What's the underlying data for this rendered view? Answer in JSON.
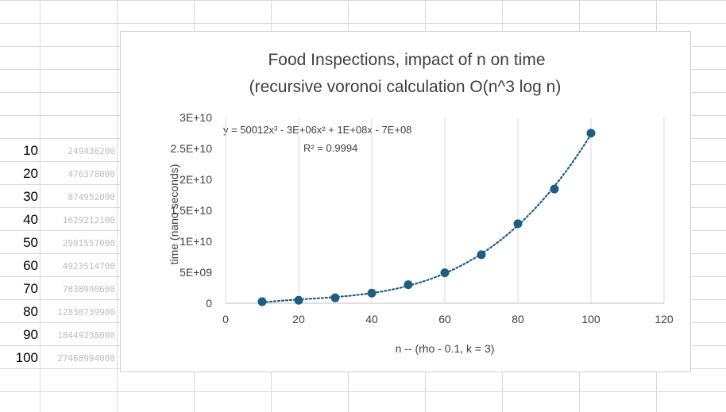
{
  "sheet": {
    "rows": [
      {
        "n": "10",
        "time": "249436200"
      },
      {
        "n": "20",
        "time": "476378000"
      },
      {
        "n": "30",
        "time": "874952000"
      },
      {
        "n": "40",
        "time": "1629212100"
      },
      {
        "n": "50",
        "time": "2991557000"
      },
      {
        "n": "60",
        "time": "4923514700"
      },
      {
        "n": "70",
        "time": "7838990600"
      },
      {
        "n": "80",
        "time": "12830739900"
      },
      {
        "n": "90",
        "time": "18449238000"
      },
      {
        "n": "100",
        "time": "27468994000"
      }
    ]
  },
  "chart_data": {
    "type": "scatter",
    "title": "Food Inspections, impact of n on time",
    "subtitle": "(recursive voronoi calculation O(n^3 log n)",
    "xlabel": "n --  (rho - 0.1, k = 3)",
    "ylabel": "time  (nano seconds)",
    "xlim": [
      0,
      120
    ],
    "ylim": [
      0,
      30000000000
    ],
    "x_ticks": [
      "0",
      "20",
      "40",
      "60",
      "80",
      "100",
      "120"
    ],
    "y_ticks": [
      "0",
      "5E+09",
      "1E+10",
      "1.5E+10",
      "2E+10",
      "2.5E+10",
      "3E+10"
    ],
    "grid": "vertical",
    "marker_color": "#1f5e80",
    "trendline_color": "#1f5e80",
    "trendline": {
      "type": "polynomial-3",
      "equation": "y = 50012x³ - 3E+06x² + 1E+08x - 7E+08",
      "r_squared": "R² = 0.9994"
    },
    "series": [
      {
        "x": [
          10,
          20,
          30,
          40,
          50,
          60,
          70,
          80,
          90,
          100
        ],
        "y": [
          249436200,
          476378000,
          874952000,
          1629212100,
          2991557000,
          4923514700,
          7838990600,
          12830739900,
          18449238000,
          27468994000
        ]
      }
    ]
  }
}
